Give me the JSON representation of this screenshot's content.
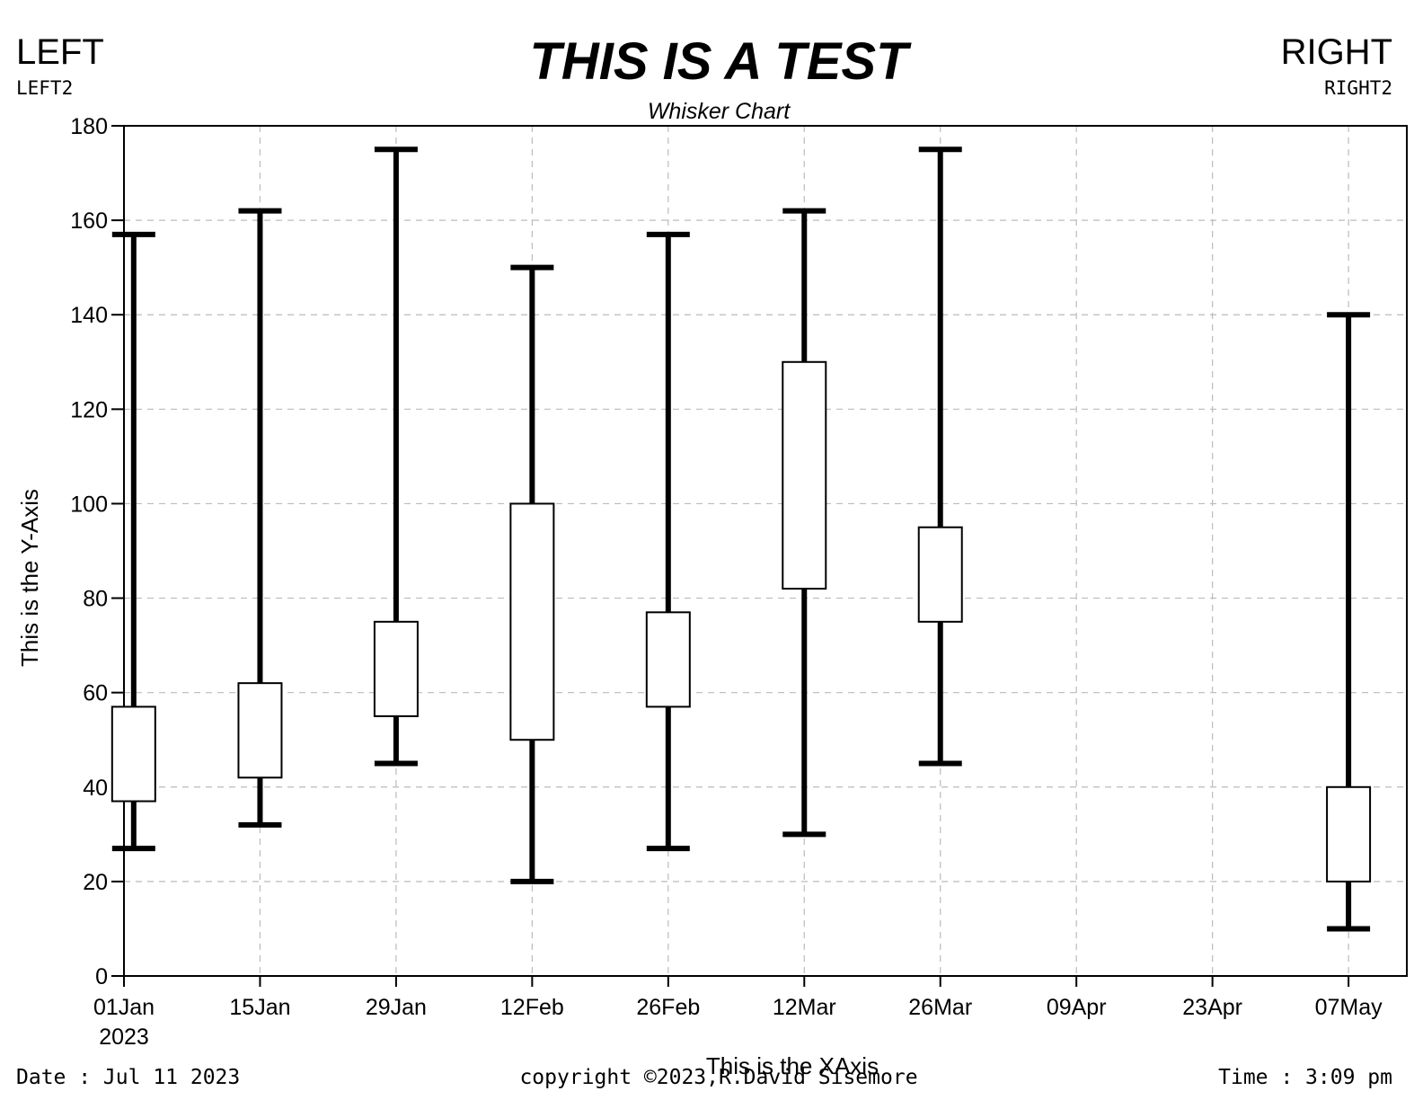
{
  "header": {
    "left": "LEFT",
    "left2": "LEFT2",
    "right": "RIGHT",
    "right2": "RIGHT2"
  },
  "footer": {
    "date": "Date : Jul 11 2023",
    "copyright": "copyright ©2023,R.David Sisemore",
    "time": "Time : 3:09 pm"
  },
  "chart_data": {
    "type": "box",
    "title": "THIS IS A TEST",
    "subtitle": "Whisker Chart",
    "xlabel": "This is the XAxis",
    "ylabel": "This is the Y-Axis",
    "xlim": [
      "2023-01-01",
      "2023-05-13"
    ],
    "ylim": [
      0,
      180
    ],
    "yticks": [
      0,
      20,
      40,
      60,
      80,
      100,
      120,
      140,
      160,
      180
    ],
    "xticks": [
      {
        "date": "2023-01-01",
        "label": "01Jan",
        "sublabel": "2023"
      },
      {
        "date": "2023-01-15",
        "label": "15Jan",
        "sublabel": ""
      },
      {
        "date": "2023-01-29",
        "label": "29Jan",
        "sublabel": ""
      },
      {
        "date": "2023-02-12",
        "label": "12Feb",
        "sublabel": ""
      },
      {
        "date": "2023-02-26",
        "label": "26Feb",
        "sublabel": ""
      },
      {
        "date": "2023-03-12",
        "label": "12Mar",
        "sublabel": ""
      },
      {
        "date": "2023-03-26",
        "label": "26Mar",
        "sublabel": ""
      },
      {
        "date": "2023-04-09",
        "label": "09Apr",
        "sublabel": ""
      },
      {
        "date": "2023-04-23",
        "label": "23Apr",
        "sublabel": ""
      },
      {
        "date": "2023-05-07",
        "label": "07May",
        "sublabel": ""
      }
    ],
    "grid": true,
    "boxes": [
      {
        "date": "2023-01-02",
        "low": 27,
        "q1": 37,
        "q3": 57,
        "high": 157
      },
      {
        "date": "2023-01-15",
        "low": 32,
        "q1": 42,
        "q3": 62,
        "high": 162
      },
      {
        "date": "2023-01-29",
        "low": 45,
        "q1": 55,
        "q3": 75,
        "high": 175
      },
      {
        "date": "2023-02-12",
        "low": 20,
        "q1": 50,
        "q3": 100,
        "high": 150
      },
      {
        "date": "2023-02-26",
        "low": 27,
        "q1": 57,
        "q3": 77,
        "high": 157
      },
      {
        "date": "2023-03-12",
        "low": 30,
        "q1": 82,
        "q3": 130,
        "high": 162
      },
      {
        "date": "2023-03-26",
        "low": 45,
        "q1": 75,
        "q3": 95,
        "high": 175
      },
      {
        "date": "2023-05-07",
        "low": 10,
        "q1": 20,
        "q3": 40,
        "high": 140
      }
    ]
  }
}
